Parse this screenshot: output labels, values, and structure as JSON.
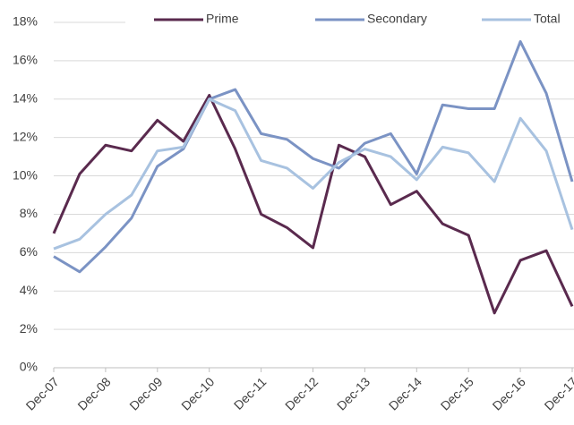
{
  "chart_data": {
    "type": "line",
    "categories": [
      "Dec-07",
      null,
      "Dec-08",
      null,
      "Dec-09",
      null,
      "Dec-10",
      null,
      "Dec-11",
      null,
      "Dec-12",
      null,
      "Dec-13",
      null,
      "Dec-14",
      null,
      "Dec-15",
      null,
      "Dec-16",
      null,
      "Dec-17"
    ],
    "series": [
      {
        "name": "Prime",
        "color": "#5a2a4e",
        "values": [
          7.0,
          10.1,
          11.6,
          11.3,
          12.9,
          11.8,
          14.2,
          11.4,
          8.0,
          7.3,
          6.25,
          11.6,
          11.0,
          8.5,
          9.2,
          7.5,
          6.9,
          2.85,
          5.6,
          6.1,
          3.2
        ]
      },
      {
        "name": "Secondary",
        "color": "#7b93c4",
        "values": [
          5.8,
          5.0,
          6.3,
          7.8,
          10.5,
          11.4,
          14.0,
          14.5,
          12.2,
          11.9,
          10.9,
          10.4,
          11.7,
          12.2,
          10.1,
          13.7,
          13.5,
          13.5,
          17.0,
          14.3,
          9.7
        ]
      },
      {
        "name": "Total",
        "color": "#a8c2e0",
        "values": [
          6.2,
          6.7,
          8.0,
          9.0,
          11.3,
          11.5,
          14.0,
          13.4,
          10.8,
          10.4,
          9.35,
          10.7,
          11.4,
          11.0,
          9.8,
          11.5,
          11.2,
          9.7,
          13.0,
          11.3,
          7.2
        ]
      }
    ],
    "ylim": [
      0,
      18
    ],
    "yticks": [
      {
        "value": 0,
        "label": "0%"
      },
      {
        "value": 2,
        "label": "2%"
      },
      {
        "value": 4,
        "label": "4%"
      },
      {
        "value": 6,
        "label": "6%"
      },
      {
        "value": 8,
        "label": "8%"
      },
      {
        "value": 10,
        "label": "10%"
      },
      {
        "value": 12,
        "label": "12%"
      },
      {
        "value": 14,
        "label": "14%"
      },
      {
        "value": 16,
        "label": "16%"
      },
      {
        "value": 18,
        "label": "18%"
      }
    ],
    "grid": true,
    "legend": "top"
  }
}
